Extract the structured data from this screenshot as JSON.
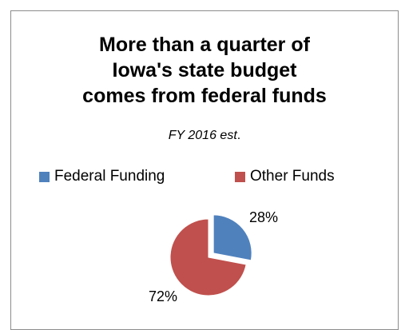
{
  "chart_data": {
    "type": "pie",
    "title_lines": [
      "More than a quarter of",
      "Iowa's state budget",
      "comes from federal funds"
    ],
    "subtitle": "FY 2016 est",
    "subtitle_suffix": ".",
    "categories": [
      "Federal Funding",
      "Other Funds"
    ],
    "values": [
      28,
      72
    ],
    "data_labels": [
      "28%",
      "72%"
    ],
    "colors": [
      "#4f81bd",
      "#c0504d"
    ],
    "legend_position": "top",
    "exploded_slice": "Federal Funding"
  }
}
